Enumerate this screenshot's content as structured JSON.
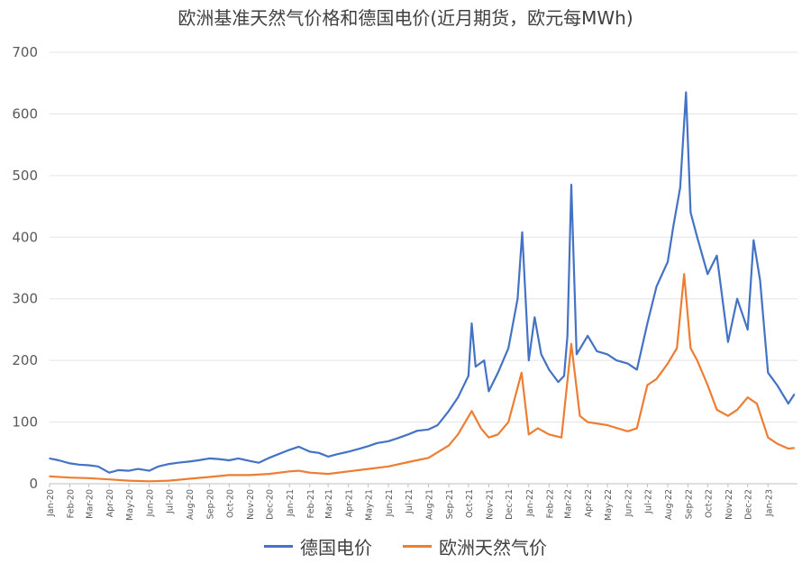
{
  "chart_data": {
    "type": "line",
    "title": "欧洲基准天然气价格和德国电价(近月期货，欧元每MWh)",
    "xlabel": "",
    "ylabel": "",
    "ylim": [
      0,
      700
    ],
    "yticks": [
      0,
      100,
      200,
      300,
      400,
      500,
      600,
      700
    ],
    "grid": true,
    "legend_position": "bottom",
    "x_tick_labels": [
      "Jan-20",
      "Feb-20",
      "Mar-20",
      "Apr-20",
      "May-20",
      "Jun-20",
      "Jul-20",
      "Aug-20",
      "Sep-20",
      "Oct-20",
      "Nov-20",
      "Dec-20",
      "Jan-21",
      "Feb-21",
      "Mar-21",
      "Apr-21",
      "May-21",
      "Jun-21",
      "Jul-21",
      "Aug-21",
      "Sep-21",
      "Oct-21",
      "Nov-21",
      "Dec-21",
      "Jan-22",
      "Feb-22",
      "Mar-22",
      "Apr-22",
      "May-22",
      "Jun-22",
      "Jul-22",
      "Aug-22",
      "Sep-22",
      "Oct-22",
      "Nov-22",
      "Dec-22",
      "Jan-23"
    ],
    "x_range": [
      "2020-01",
      "2023-02"
    ],
    "series": [
      {
        "name": "德国电价",
        "color": "#4472C4",
        "points": [
          [
            "2020-01-01",
            41
          ],
          [
            "2020-01-15",
            38
          ],
          [
            "2020-02-01",
            33
          ],
          [
            "2020-02-15",
            31
          ],
          [
            "2020-03-01",
            30
          ],
          [
            "2020-03-15",
            28
          ],
          [
            "2020-04-01",
            18
          ],
          [
            "2020-04-15",
            22
          ],
          [
            "2020-05-01",
            21
          ],
          [
            "2020-05-15",
            24
          ],
          [
            "2020-06-01",
            21
          ],
          [
            "2020-06-15",
            28
          ],
          [
            "2020-07-01",
            32
          ],
          [
            "2020-07-15",
            34
          ],
          [
            "2020-08-01",
            36
          ],
          [
            "2020-08-15",
            38
          ],
          [
            "2020-09-01",
            41
          ],
          [
            "2020-09-15",
            40
          ],
          [
            "2020-10-01",
            38
          ],
          [
            "2020-10-15",
            41
          ],
          [
            "2020-11-01",
            37
          ],
          [
            "2020-11-15",
            34
          ],
          [
            "2020-12-01",
            42
          ],
          [
            "2020-12-15",
            48
          ],
          [
            "2021-01-01",
            55
          ],
          [
            "2021-01-15",
            60
          ],
          [
            "2021-02-01",
            52
          ],
          [
            "2021-02-15",
            50
          ],
          [
            "2021-03-01",
            44
          ],
          [
            "2021-03-15",
            48
          ],
          [
            "2021-04-01",
            52
          ],
          [
            "2021-04-15",
            56
          ],
          [
            "2021-05-01",
            61
          ],
          [
            "2021-05-15",
            66
          ],
          [
            "2021-06-01",
            69
          ],
          [
            "2021-06-15",
            74
          ],
          [
            "2021-07-01",
            80
          ],
          [
            "2021-07-15",
            86
          ],
          [
            "2021-08-01",
            88
          ],
          [
            "2021-08-15",
            95
          ],
          [
            "2021-09-01",
            118
          ],
          [
            "2021-09-15",
            140
          ],
          [
            "2021-10-01",
            175
          ],
          [
            "2021-10-06",
            260
          ],
          [
            "2021-10-12",
            190
          ],
          [
            "2021-10-25",
            200
          ],
          [
            "2021-11-01",
            150
          ],
          [
            "2021-11-15",
            180
          ],
          [
            "2021-12-01",
            220
          ],
          [
            "2021-12-15",
            300
          ],
          [
            "2021-12-22",
            408
          ],
          [
            "2022-01-01",
            200
          ],
          [
            "2022-01-10",
            270
          ],
          [
            "2022-01-20",
            210
          ],
          [
            "2022-02-01",
            185
          ],
          [
            "2022-02-15",
            165
          ],
          [
            "2022-02-24",
            175
          ],
          [
            "2022-03-01",
            240
          ],
          [
            "2022-03-07",
            485
          ],
          [
            "2022-03-15",
            210
          ],
          [
            "2022-04-01",
            240
          ],
          [
            "2022-04-15",
            215
          ],
          [
            "2022-05-01",
            210
          ],
          [
            "2022-05-15",
            200
          ],
          [
            "2022-06-01",
            195
          ],
          [
            "2022-06-15",
            185
          ],
          [
            "2022-07-01",
            260
          ],
          [
            "2022-07-15",
            320
          ],
          [
            "2022-08-01",
            360
          ],
          [
            "2022-08-10",
            420
          ],
          [
            "2022-08-20",
            480
          ],
          [
            "2022-08-29",
            635
          ],
          [
            "2022-09-05",
            440
          ],
          [
            "2022-09-15",
            400
          ],
          [
            "2022-10-01",
            340
          ],
          [
            "2022-10-15",
            370
          ],
          [
            "2022-11-01",
            230
          ],
          [
            "2022-11-15",
            300
          ],
          [
            "2022-12-01",
            250
          ],
          [
            "2022-12-10",
            395
          ],
          [
            "2022-12-20",
            330
          ],
          [
            "2023-01-01",
            180
          ],
          [
            "2023-01-15",
            160
          ],
          [
            "2023-02-01",
            130
          ],
          [
            "2023-02-10",
            145
          ]
        ]
      },
      {
        "name": "欧洲天然气价",
        "color": "#ED7D31",
        "points": [
          [
            "2020-01-01",
            12
          ],
          [
            "2020-02-01",
            10
          ],
          [
            "2020-03-01",
            9
          ],
          [
            "2020-04-01",
            7
          ],
          [
            "2020-05-01",
            5
          ],
          [
            "2020-06-01",
            4
          ],
          [
            "2020-07-01",
            5
          ],
          [
            "2020-08-01",
            8
          ],
          [
            "2020-09-01",
            11
          ],
          [
            "2020-10-01",
            14
          ],
          [
            "2020-11-01",
            14
          ],
          [
            "2020-12-01",
            16
          ],
          [
            "2021-01-01",
            20
          ],
          [
            "2021-01-15",
            21
          ],
          [
            "2021-02-01",
            18
          ],
          [
            "2021-03-01",
            16
          ],
          [
            "2021-04-01",
            20
          ],
          [
            "2021-05-01",
            24
          ],
          [
            "2021-06-01",
            28
          ],
          [
            "2021-07-01",
            35
          ],
          [
            "2021-08-01",
            42
          ],
          [
            "2021-09-01",
            62
          ],
          [
            "2021-09-15",
            80
          ],
          [
            "2021-10-06",
            118
          ],
          [
            "2021-10-20",
            90
          ],
          [
            "2021-11-01",
            75
          ],
          [
            "2021-11-15",
            80
          ],
          [
            "2021-12-01",
            100
          ],
          [
            "2021-12-21",
            180
          ],
          [
            "2022-01-01",
            80
          ],
          [
            "2022-01-15",
            90
          ],
          [
            "2022-02-01",
            80
          ],
          [
            "2022-02-20",
            75
          ],
          [
            "2022-03-07",
            227
          ],
          [
            "2022-03-20",
            110
          ],
          [
            "2022-04-01",
            100
          ],
          [
            "2022-05-01",
            95
          ],
          [
            "2022-06-01",
            85
          ],
          [
            "2022-06-15",
            90
          ],
          [
            "2022-07-01",
            160
          ],
          [
            "2022-07-15",
            170
          ],
          [
            "2022-08-01",
            195
          ],
          [
            "2022-08-15",
            220
          ],
          [
            "2022-08-26",
            340
          ],
          [
            "2022-09-05",
            220
          ],
          [
            "2022-09-15",
            200
          ],
          [
            "2022-10-01",
            160
          ],
          [
            "2022-10-15",
            120
          ],
          [
            "2022-11-01",
            110
          ],
          [
            "2022-11-15",
            120
          ],
          [
            "2022-12-01",
            140
          ],
          [
            "2022-12-15",
            130
          ],
          [
            "2023-01-01",
            75
          ],
          [
            "2023-01-15",
            65
          ],
          [
            "2023-02-01",
            57
          ],
          [
            "2023-02-10",
            58
          ]
        ]
      }
    ]
  }
}
